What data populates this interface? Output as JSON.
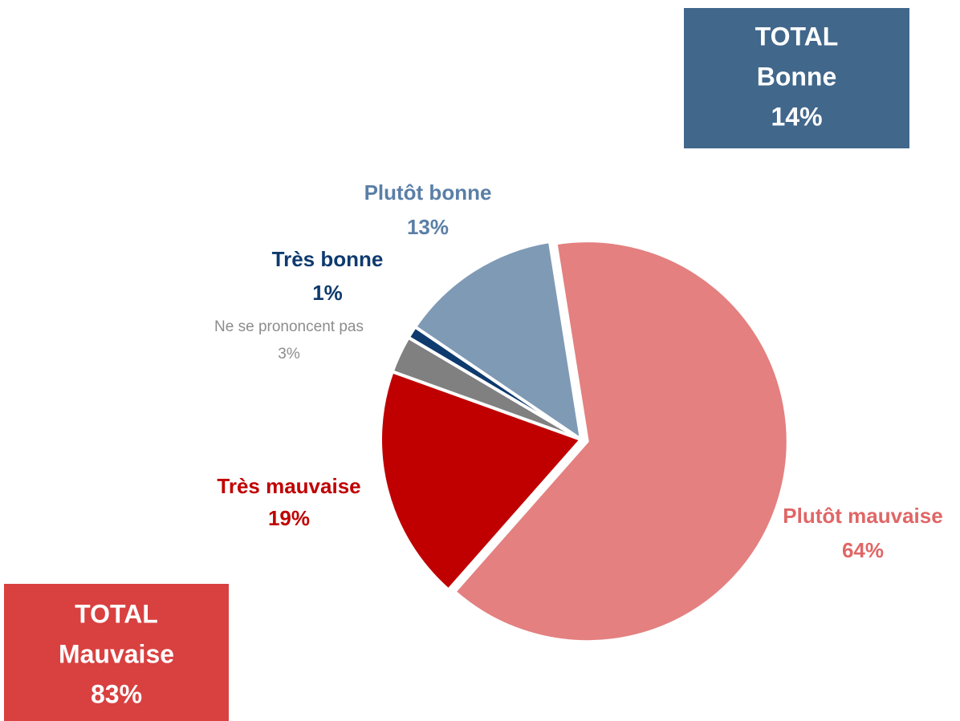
{
  "chart_data": {
    "type": "pie",
    "categories": [
      "Plutôt mauvaise",
      "Très mauvaise",
      "Ne se prononcent pas",
      "Très bonne",
      "Plutôt bonne"
    ],
    "values": [
      64,
      19,
      3,
      1,
      13
    ],
    "value_labels": [
      "64%",
      "19%",
      "3%",
      "1%",
      "13%"
    ],
    "colors": [
      "#e48080",
      "#c00000",
      "#808080",
      "#0e3a6e",
      "#7f9ab5"
    ],
    "label_colors": [
      "#e06666",
      "#c00000",
      "#8c8c8c",
      "#0e3a6e",
      "#5a7fa6"
    ],
    "annotations": [
      {
        "lines": [
          "TOTAL",
          "Bonne",
          "14%"
        ],
        "color": "#41678b"
      },
      {
        "lines": [
          "TOTAL",
          "Mauvaise",
          "83%"
        ],
        "color": "#d94040"
      }
    ]
  }
}
